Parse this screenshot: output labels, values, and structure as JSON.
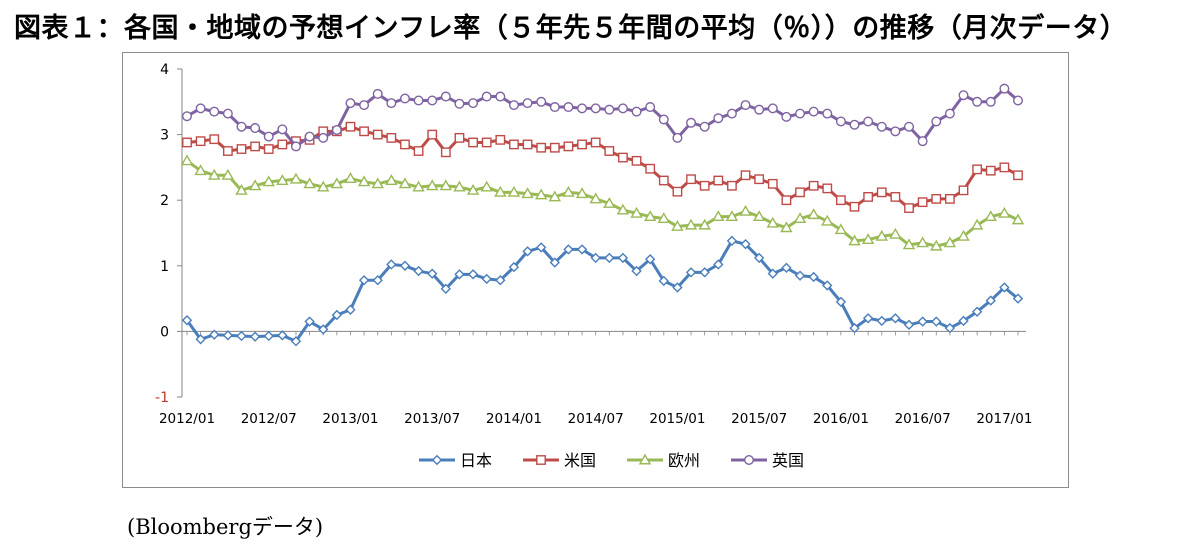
{
  "title": "図表１：各国・地域の予想インフレ率（５年先５年間の平均（％））の推移（月次データ）",
  "source": "(Bloombergデータ)",
  "colors": {
    "japan": "#4a7ebb",
    "us": "#be4b48",
    "europe": "#98b954",
    "uk": "#7e62a1",
    "axis": "#868686",
    "tick_label": "#000000"
  },
  "chart_data": {
    "type": "line",
    "title": "",
    "xlabel": "",
    "ylabel": "",
    "ylim": [
      -1,
      4
    ],
    "yticks": [
      "-1",
      "0",
      "1",
      "2",
      "3",
      "4"
    ],
    "xtick_labels": [
      "2012/01",
      "2012/07",
      "2013/01",
      "2013/07",
      "2014/01",
      "2014/07",
      "2015/01",
      "2015/07",
      "2016/01",
      "2016/07",
      "2017/01"
    ],
    "grid": false,
    "legend_position": "bottom",
    "x_start": "2012/01",
    "x_end": "2017/02",
    "series": [
      {
        "name": "日本",
        "marker": "diamond",
        "color_key": "japan",
        "values": [
          0.17,
          -0.12,
          -0.05,
          -0.06,
          -0.07,
          -0.08,
          -0.07,
          -0.06,
          -0.15,
          0.15,
          0.03,
          0.25,
          0.33,
          0.78,
          0.78,
          1.02,
          1.0,
          0.92,
          0.88,
          0.65,
          0.87,
          0.87,
          0.8,
          0.78,
          0.98,
          1.22,
          1.28,
          1.05,
          1.25,
          1.25,
          1.12,
          1.12,
          1.12,
          0.92,
          1.1,
          0.77,
          0.67,
          0.9,
          0.9,
          1.02,
          1.38,
          1.33,
          1.12,
          0.88,
          0.97,
          0.85,
          0.83,
          0.7,
          0.45,
          0.05,
          0.2,
          0.16,
          0.2,
          0.1,
          0.15,
          0.15,
          0.05,
          0.16,
          0.3,
          0.47,
          0.67,
          0.5
        ]
      },
      {
        "name": "米国",
        "marker": "square",
        "color_key": "us",
        "values": [
          2.88,
          2.9,
          2.93,
          2.75,
          2.78,
          2.82,
          2.78,
          2.85,
          2.9,
          2.92,
          3.05,
          3.05,
          3.12,
          3.05,
          3.0,
          2.95,
          2.85,
          2.75,
          3.0,
          2.73,
          2.95,
          2.88,
          2.88,
          2.92,
          2.85,
          2.85,
          2.8,
          2.8,
          2.82,
          2.85,
          2.88,
          2.75,
          2.65,
          2.6,
          2.48,
          2.3,
          2.13,
          2.32,
          2.22,
          2.3,
          2.22,
          2.38,
          2.32,
          2.25,
          2.0,
          2.12,
          2.22,
          2.18,
          2.0,
          1.9,
          2.05,
          2.12,
          2.05,
          1.88,
          1.97,
          2.02,
          2.02,
          2.15,
          2.47,
          2.45,
          2.5,
          2.38
        ]
      },
      {
        "name": "欧州",
        "marker": "triangle",
        "color_key": "europe",
        "values": [
          2.6,
          2.45,
          2.38,
          2.38,
          2.15,
          2.22,
          2.28,
          2.3,
          2.32,
          2.25,
          2.2,
          2.25,
          2.33,
          2.28,
          2.25,
          2.3,
          2.25,
          2.2,
          2.22,
          2.22,
          2.2,
          2.15,
          2.2,
          2.12,
          2.12,
          2.1,
          2.08,
          2.05,
          2.12,
          2.1,
          2.02,
          1.95,
          1.85,
          1.8,
          1.75,
          1.72,
          1.6,
          1.62,
          1.62,
          1.75,
          1.75,
          1.83,
          1.75,
          1.65,
          1.58,
          1.72,
          1.78,
          1.68,
          1.55,
          1.38,
          1.4,
          1.45,
          1.48,
          1.32,
          1.35,
          1.3,
          1.35,
          1.45,
          1.62,
          1.75,
          1.8,
          1.7
        ]
      },
      {
        "name": "英国",
        "marker": "circle",
        "color_key": "uk",
        "values": [
          3.28,
          3.4,
          3.35,
          3.32,
          3.12,
          3.1,
          2.97,
          3.08,
          2.82,
          2.97,
          2.95,
          3.07,
          3.48,
          3.45,
          3.62,
          3.48,
          3.55,
          3.52,
          3.52,
          3.58,
          3.47,
          3.48,
          3.58,
          3.58,
          3.45,
          3.48,
          3.5,
          3.42,
          3.42,
          3.4,
          3.4,
          3.38,
          3.4,
          3.35,
          3.42,
          3.23,
          2.95,
          3.18,
          3.12,
          3.25,
          3.32,
          3.45,
          3.38,
          3.4,
          3.27,
          3.32,
          3.35,
          3.32,
          3.2,
          3.15,
          3.2,
          3.12,
          3.05,
          3.12,
          2.9,
          3.2,
          3.32,
          3.6,
          3.5,
          3.5,
          3.7,
          3.52
        ]
      }
    ]
  }
}
